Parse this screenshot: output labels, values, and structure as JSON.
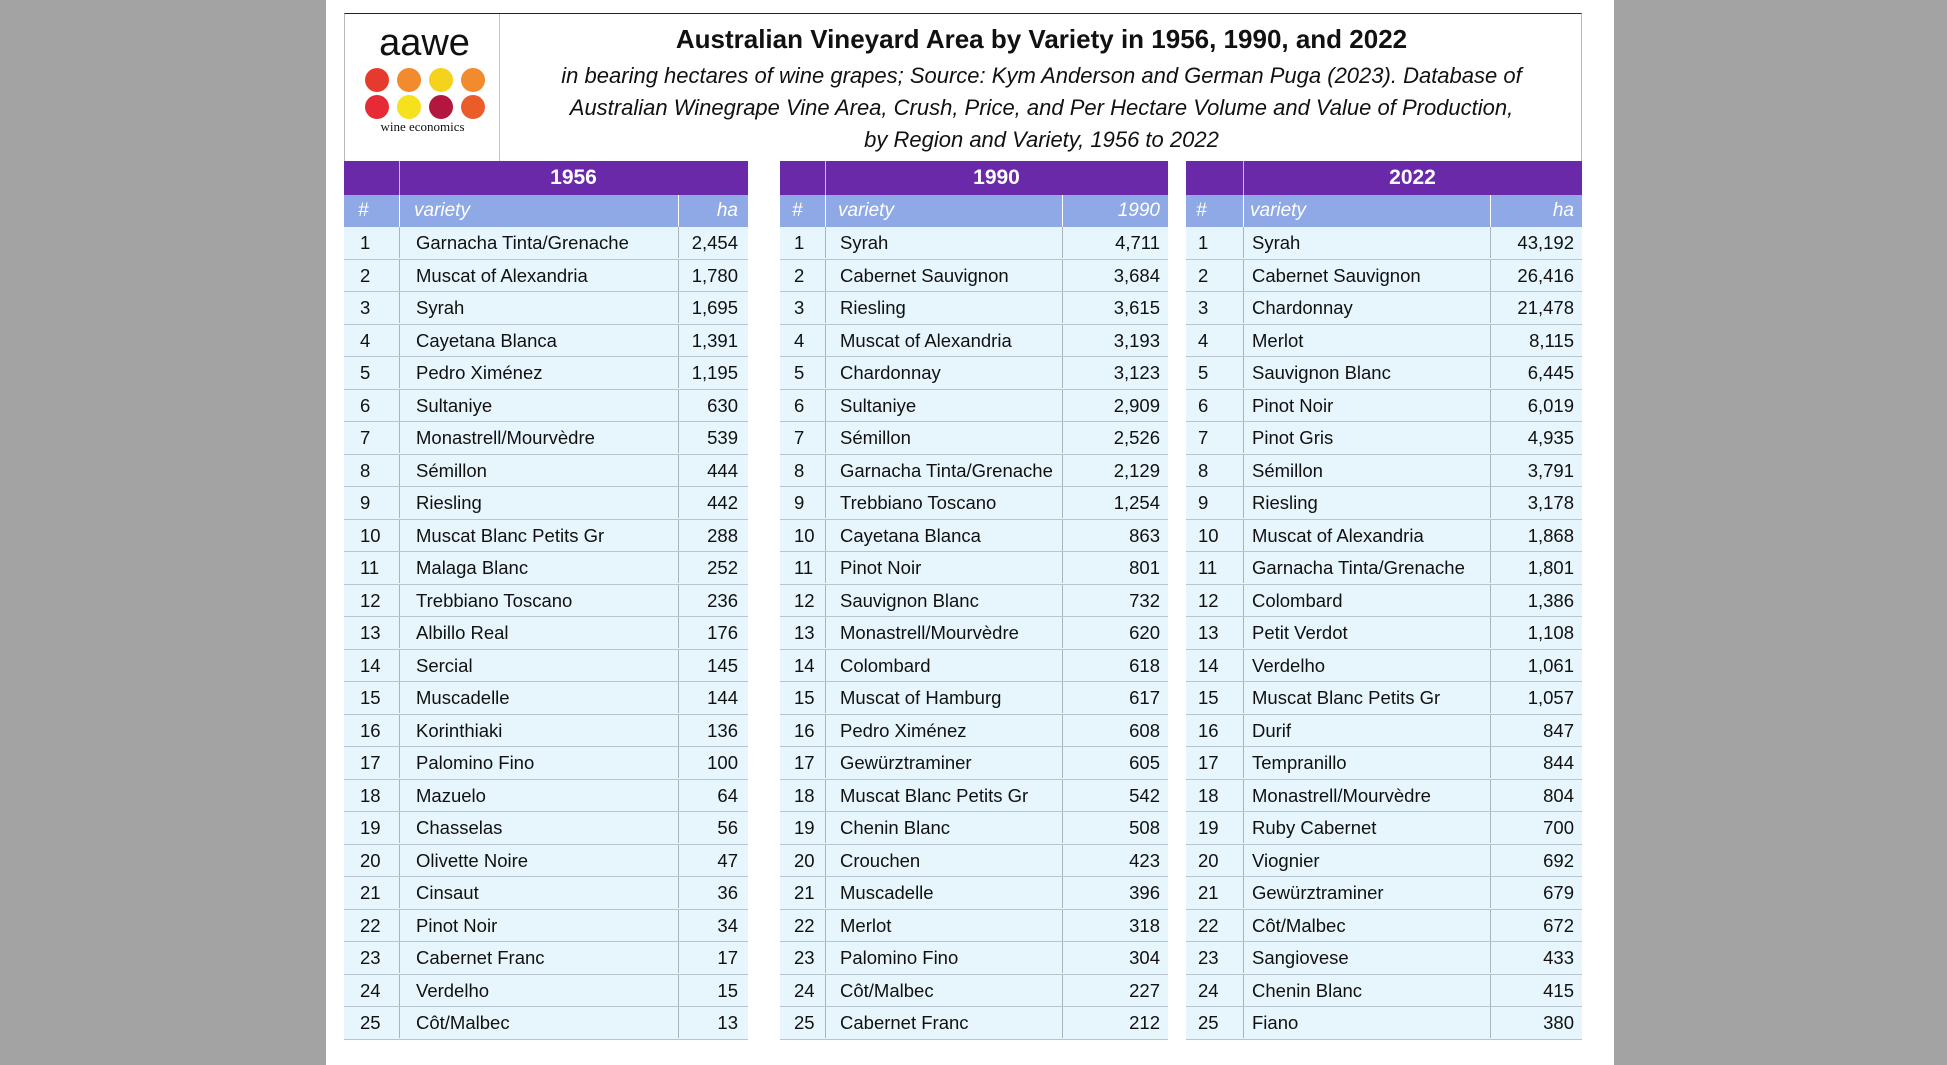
{
  "title": "Australian Vineyard Area by Variety in 1956, 1990, and 2022",
  "subtitle_lines": [
    "in bearing hectares of wine grapes; Source: Kym Anderson and German Puga (2023). Database of",
    "Australian Winegrape Vine Area, Crush, Price, and Per Hectare Volume and Value of Production,",
    "by Region and Variety, 1956 to 2022"
  ],
  "logo": {
    "wordmark": "aawe",
    "subtext": "wine economics",
    "dot_colors": [
      "#e63a2e",
      "#f28a2e",
      "#f5d21c",
      "#f28a2e",
      "#e62a36",
      "#f5e11c",
      "#b3173f",
      "#ea5c2a"
    ]
  },
  "colors": {
    "year_bar": "#6a29a8",
    "header": "#8fa9e6",
    "row": "#e7f6fd"
  },
  "panels": [
    {
      "year": "1956",
      "headers": {
        "rank": "#",
        "variety": "variety",
        "value": "ha"
      },
      "rows": [
        {
          "rank": "1",
          "variety": "Garnacha Tinta/Grenache",
          "value": "2,454"
        },
        {
          "rank": "2",
          "variety": "Muscat of Alexandria",
          "value": "1,780"
        },
        {
          "rank": "3",
          "variety": "Syrah",
          "value": "1,695"
        },
        {
          "rank": "4",
          "variety": "Cayetana Blanca",
          "value": "1,391"
        },
        {
          "rank": "5",
          "variety": "Pedro Ximénez",
          "value": "1,195"
        },
        {
          "rank": "6",
          "variety": "Sultaniye",
          "value": "630"
        },
        {
          "rank": "7",
          "variety": "Monastrell/Mourvèdre",
          "value": "539"
        },
        {
          "rank": "8",
          "variety": "Sémillon",
          "value": "444"
        },
        {
          "rank": "9",
          "variety": "Riesling",
          "value": "442"
        },
        {
          "rank": "10",
          "variety": "Muscat Blanc Petits Gr",
          "value": "288"
        },
        {
          "rank": "11",
          "variety": "Malaga Blanc",
          "value": "252"
        },
        {
          "rank": "12",
          "variety": "Trebbiano Toscano",
          "value": "236"
        },
        {
          "rank": "13",
          "variety": "Albillo Real",
          "value": "176"
        },
        {
          "rank": "14",
          "variety": "Sercial",
          "value": "145"
        },
        {
          "rank": "15",
          "variety": "Muscadelle",
          "value": "144"
        },
        {
          "rank": "16",
          "variety": "Korinthiaki",
          "value": "136"
        },
        {
          "rank": "17",
          "variety": "Palomino Fino",
          "value": "100"
        },
        {
          "rank": "18",
          "variety": "Mazuelo",
          "value": "64"
        },
        {
          "rank": "19",
          "variety": "Chasselas",
          "value": "56"
        },
        {
          "rank": "20",
          "variety": "Olivette Noire",
          "value": "47"
        },
        {
          "rank": "21",
          "variety": "Cinsaut",
          "value": "36"
        },
        {
          "rank": "22",
          "variety": "Pinot Noir",
          "value": "34"
        },
        {
          "rank": "23",
          "variety": "Cabernet Franc",
          "value": "17"
        },
        {
          "rank": "24",
          "variety": "Verdelho",
          "value": "15"
        },
        {
          "rank": "25",
          "variety": "Côt/Malbec",
          "value": "13"
        }
      ]
    },
    {
      "year": "1990",
      "headers": {
        "rank": "#",
        "variety": "variety",
        "value": "1990"
      },
      "rows": [
        {
          "rank": "1",
          "variety": "Syrah",
          "value": "4,711"
        },
        {
          "rank": "2",
          "variety": "Cabernet Sauvignon",
          "value": "3,684"
        },
        {
          "rank": "3",
          "variety": "Riesling",
          "value": "3,615"
        },
        {
          "rank": "4",
          "variety": "Muscat of Alexandria",
          "value": "3,193"
        },
        {
          "rank": "5",
          "variety": "Chardonnay",
          "value": "3,123"
        },
        {
          "rank": "6",
          "variety": "Sultaniye",
          "value": "2,909"
        },
        {
          "rank": "7",
          "variety": "Sémillon",
          "value": "2,526"
        },
        {
          "rank": "8",
          "variety": "Garnacha Tinta/Grenache",
          "value": "2,129"
        },
        {
          "rank": "9",
          "variety": "Trebbiano Toscano",
          "value": "1,254"
        },
        {
          "rank": "10",
          "variety": "Cayetana Blanca",
          "value": "863"
        },
        {
          "rank": "11",
          "variety": "Pinot Noir",
          "value": "801"
        },
        {
          "rank": "12",
          "variety": "Sauvignon Blanc",
          "value": "732"
        },
        {
          "rank": "13",
          "variety": "Monastrell/Mourvèdre",
          "value": "620"
        },
        {
          "rank": "14",
          "variety": "Colombard",
          "value": "618"
        },
        {
          "rank": "15",
          "variety": "Muscat of Hamburg",
          "value": "617"
        },
        {
          "rank": "16",
          "variety": "Pedro Ximénez",
          "value": "608"
        },
        {
          "rank": "17",
          "variety": "Gewürztraminer",
          "value": "605"
        },
        {
          "rank": "18",
          "variety": "Muscat Blanc Petits Gr",
          "value": "542"
        },
        {
          "rank": "19",
          "variety": "Chenin Blanc",
          "value": "508"
        },
        {
          "rank": "20",
          "variety": "Crouchen",
          "value": "423"
        },
        {
          "rank": "21",
          "variety": "Muscadelle",
          "value": "396"
        },
        {
          "rank": "22",
          "variety": "Merlot",
          "value": "318"
        },
        {
          "rank": "23",
          "variety": "Palomino Fino",
          "value": "304"
        },
        {
          "rank": "24",
          "variety": "Côt/Malbec",
          "value": "227"
        },
        {
          "rank": "25",
          "variety": "Cabernet Franc",
          "value": "212"
        }
      ]
    },
    {
      "year": "2022",
      "headers": {
        "rank": "#",
        "variety": "variety",
        "value": "ha"
      },
      "rows": [
        {
          "rank": "1",
          "variety": "Syrah",
          "value": "43,192"
        },
        {
          "rank": "2",
          "variety": "Cabernet Sauvignon",
          "value": "26,416"
        },
        {
          "rank": "3",
          "variety": "Chardonnay",
          "value": "21,478"
        },
        {
          "rank": "4",
          "variety": "Merlot",
          "value": "8,115"
        },
        {
          "rank": "5",
          "variety": "Sauvignon Blanc",
          "value": "6,445"
        },
        {
          "rank": "6",
          "variety": "Pinot Noir",
          "value": "6,019"
        },
        {
          "rank": "7",
          "variety": "Pinot Gris",
          "value": "4,935"
        },
        {
          "rank": "8",
          "variety": "Sémillon",
          "value": "3,791"
        },
        {
          "rank": "9",
          "variety": "Riesling",
          "value": "3,178"
        },
        {
          "rank": "10",
          "variety": "Muscat of Alexandria",
          "value": "1,868"
        },
        {
          "rank": "11",
          "variety": "Garnacha Tinta/Grenache",
          "value": "1,801"
        },
        {
          "rank": "12",
          "variety": "Colombard",
          "value": "1,386"
        },
        {
          "rank": "13",
          "variety": "Petit Verdot",
          "value": "1,108"
        },
        {
          "rank": "14",
          "variety": "Verdelho",
          "value": "1,061"
        },
        {
          "rank": "15",
          "variety": "Muscat Blanc Petits Gr",
          "value": "1,057"
        },
        {
          "rank": "16",
          "variety": "Durif",
          "value": "847"
        },
        {
          "rank": "17",
          "variety": "Tempranillo",
          "value": "844"
        },
        {
          "rank": "18",
          "variety": "Monastrell/Mourvèdre",
          "value": "804"
        },
        {
          "rank": "19",
          "variety": "Ruby Cabernet",
          "value": "700"
        },
        {
          "rank": "20",
          "variety": "Viognier",
          "value": "692"
        },
        {
          "rank": "21",
          "variety": "Gewürztraminer",
          "value": "679"
        },
        {
          "rank": "22",
          "variety": "Côt/Malbec",
          "value": "672"
        },
        {
          "rank": "23",
          "variety": "Sangiovese",
          "value": "433"
        },
        {
          "rank": "24",
          "variety": "Chenin Blanc",
          "value": "415"
        },
        {
          "rank": "25",
          "variety": "Fiano",
          "value": "380"
        }
      ]
    }
  ]
}
